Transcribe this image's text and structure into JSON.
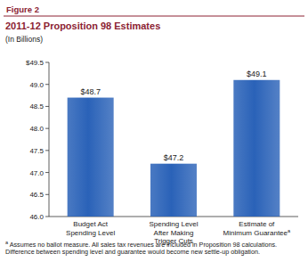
{
  "chart_data": {
    "type": "bar",
    "figure_label": "Figure 2",
    "title": "2011-12 Proposition 98 Estimates",
    "subtitle": "(In Billions)",
    "categories": [
      "Budget Act\nSpending Level",
      "Spending Level\nAfter Making\nTrigger Cuts",
      "Estimate of\nMinimum Guarantee"
    ],
    "values": [
      48.7,
      47.2,
      49.1
    ],
    "value_labels": [
      "$48.7",
      "$47.2",
      "$49.1"
    ],
    "data_labels": true,
    "color": "#2a62b8",
    "ylim": [
      46.0,
      49.5
    ],
    "yticks": [
      {
        "value": 46.0,
        "label": "46.0"
      },
      {
        "value": 46.5,
        "label": "46.5"
      },
      {
        "value": 47.0,
        "label": "47.0"
      },
      {
        "value": 47.5,
        "label": "47.5"
      },
      {
        "value": 48.0,
        "label": "48.0"
      },
      {
        "value": 48.5,
        "label": "48.5"
      },
      {
        "value": 49.0,
        "label": "49.0"
      },
      {
        "value": 49.5,
        "label": "$49.5"
      }
    ],
    "grid": false,
    "footnote": {
      "marker": "a",
      "category_index": 2,
      "text": "Assumes no ballot measure. All sales tax revenues are included in Proposition 98 calculations. Difference between spending level and guarantee would become new settle-up obligation."
    }
  }
}
